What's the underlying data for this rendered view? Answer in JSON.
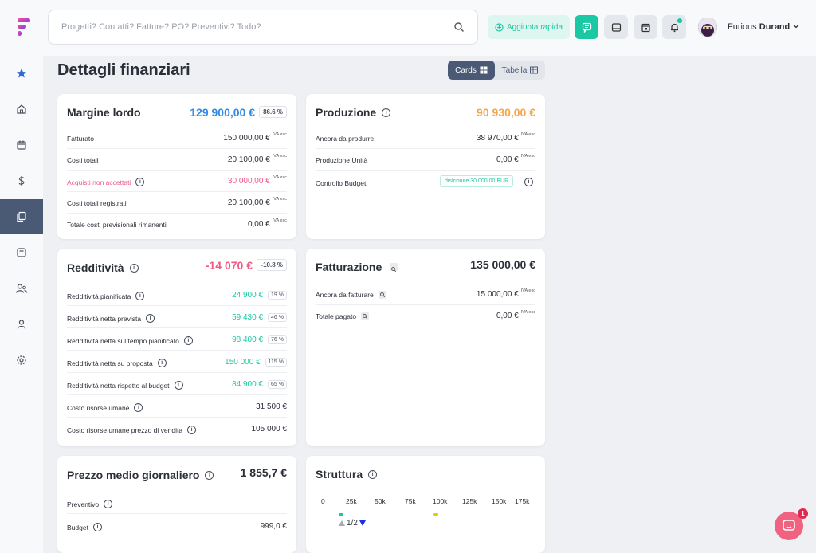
{
  "search": {
    "placeholder": "Progetti? Contatti? Fatture? PO? Preventivi? Todo?"
  },
  "header": {
    "quick_add": "Aggiunta rapida",
    "user_first": "Furious",
    "user_last": "Durand",
    "notification_count": "1"
  },
  "page": {
    "title": "Dettagli finanziari",
    "view_cards": "Cards",
    "view_table": "Tabella"
  },
  "iva": "IVA esc",
  "margine": {
    "title": "Margine lordo",
    "value": "129 900,00 €",
    "pct": "86.6 %",
    "rows": [
      {
        "label": "Fatturato",
        "value": "150 000,00 €"
      },
      {
        "label": "Costi totali",
        "value": "20 100,00 €"
      },
      {
        "label": "Acquisti non accettati",
        "value": "30 000,00 €"
      },
      {
        "label": "Costi totali registrati",
        "value": "20 100,00 €"
      },
      {
        "label": "Totale costi previsionali rimanenti",
        "value": "0,00 €"
      }
    ]
  },
  "produzione": {
    "title": "Produzione",
    "value": "90 930,00 €",
    "rows": [
      {
        "label": "Ancora da produrre",
        "value": "38 970,00 €"
      },
      {
        "label": "Produzione Unità",
        "value": "0,00 €"
      },
      {
        "label": "Controllo Budget",
        "value": "distribuire 30 000,00 EUR"
      }
    ]
  },
  "redditivita": {
    "title": "Redditività",
    "value": "-14 070 €",
    "pct": "-10.8 %",
    "rows": [
      {
        "label": "Redditività pianificata",
        "value": "24 900 €",
        "pct": "19 %"
      },
      {
        "label": "Redditività netta prevista",
        "value": "59 430 €",
        "pct": "46 %"
      },
      {
        "label": "Redditività netta sul tempo pianificato",
        "value": "98 400 €",
        "pct": "76 %"
      },
      {
        "label": "Redditività netta su proposta",
        "value": "150 000 €",
        "pct": "115 %"
      },
      {
        "label": "Redditività netta rispetto al budget",
        "value": "84 900 €",
        "pct": "65 %"
      },
      {
        "label": "Costo risorse umane",
        "value": "31 500 €"
      },
      {
        "label": "Costo risorse umane prezzo di vendita",
        "value": "105 000 €"
      }
    ]
  },
  "fatturazione": {
    "title": "Fatturazione",
    "value": "135 000,00 €",
    "rows": [
      {
        "label": "Ancora da fatturare",
        "value": "15 000,00 €"
      },
      {
        "label": "Totale pagato",
        "value": "0,00 €"
      }
    ]
  },
  "prezzo": {
    "title": "Prezzo medio giornaliero",
    "value": "1 855,7 €",
    "rows": [
      {
        "label": "Preventivo",
        "value": ""
      },
      {
        "label": "Budget",
        "value": "999,0 €"
      }
    ]
  },
  "struttura": {
    "title": "Struttura",
    "ticks": [
      "0",
      "25k",
      "50k",
      "75k",
      "100k",
      "125k",
      "150k",
      "175k"
    ],
    "pager": "1/2"
  }
}
